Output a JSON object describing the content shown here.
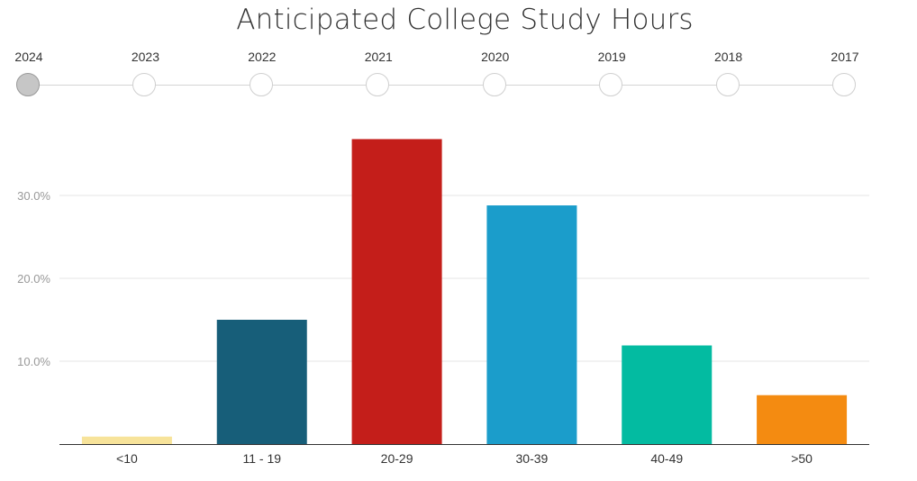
{
  "title": "Anticipated College Study Hours",
  "timeline": {
    "years": [
      "2024",
      "2023",
      "2022",
      "2021",
      "2020",
      "2019",
      "2018",
      "2017"
    ],
    "selected": "2024"
  },
  "chart_data": {
    "type": "bar",
    "title": "Anticipated College Study Hours",
    "categories": [
      "<10",
      "11 - 19",
      "20-29",
      "30-39",
      "40-49",
      ">50"
    ],
    "values": [
      0.9,
      15.0,
      36.8,
      28.8,
      11.9,
      5.9
    ],
    "colors": [
      "#f7e39a",
      "#175e79",
      "#c41e1a",
      "#1b9dcb",
      "#03bba1",
      "#f48b11"
    ],
    "yunit": "%",
    "yticks": [
      "10.0%",
      "20.0%",
      "30.0%"
    ],
    "ytick_values": [
      10,
      20,
      30
    ],
    "ylim": [
      0,
      40
    ],
    "grid": true,
    "xlabel": "",
    "ylabel": ""
  }
}
